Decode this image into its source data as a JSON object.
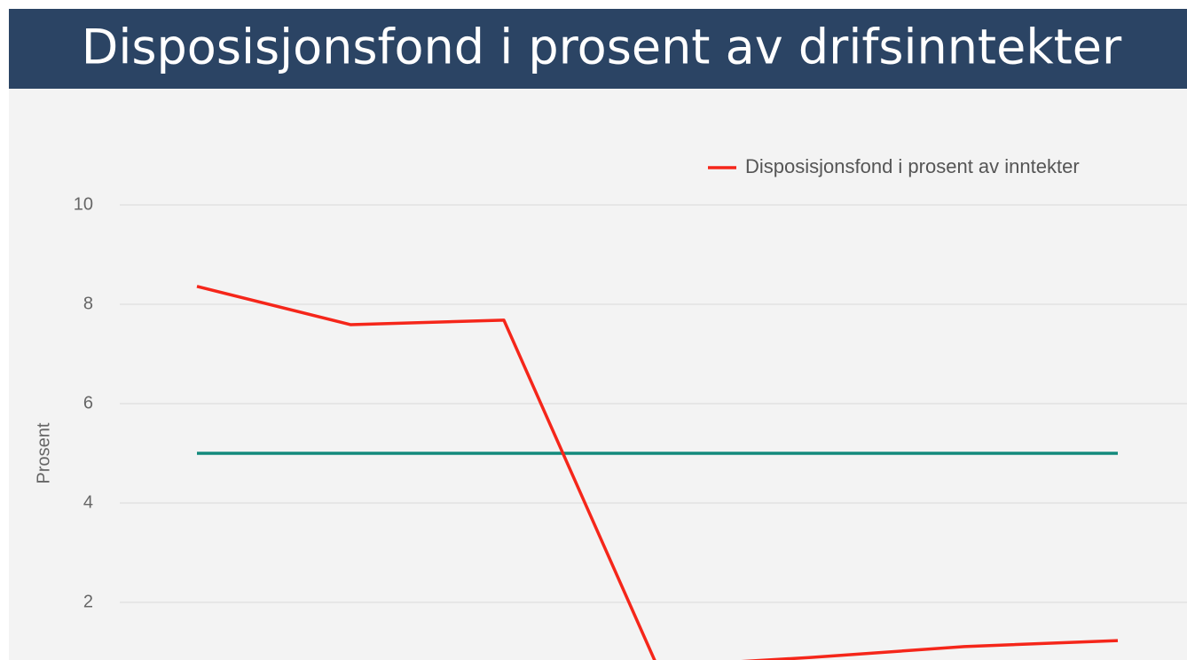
{
  "chart_data": {
    "type": "line",
    "title": "Disposisjonsfond i prosent av drifsinntekter",
    "y_label": "Prosent",
    "categories": [
      null,
      null,
      null,
      null,
      null,
      null,
      null
    ],
    "series": [
      {
        "name": "Disposisjonsfond i prosent av inntekter",
        "color": "#f5261a",
        "values": [
          8.36,
          7.59,
          7.68,
          0.71,
          0.89,
          1.11,
          1.23
        ]
      },
      {
        "color": "#138a7c",
        "values": [
          5,
          5,
          5,
          5,
          5,
          5,
          5
        ]
      }
    ],
    "ylim": [
      0,
      10
    ],
    "yticks": [
      2,
      4,
      6,
      8,
      10
    ],
    "grid": true,
    "legend": "top-right"
  }
}
